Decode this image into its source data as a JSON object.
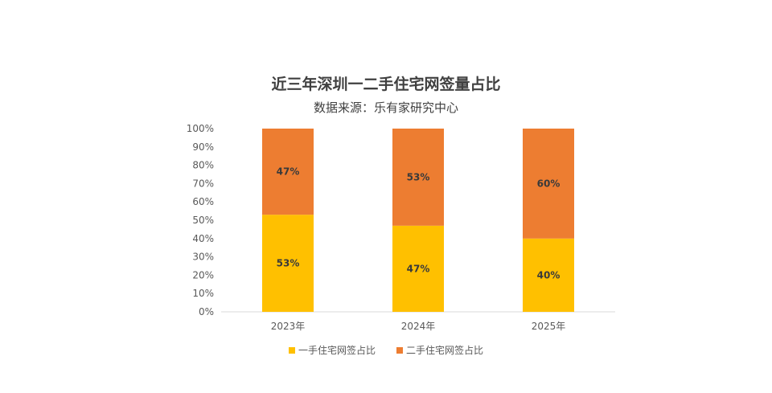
{
  "title": "近三年深圳一二手住宅网签量占比",
  "subtitle": "数据来源：乐有家研究中心",
  "colors": {
    "first_hand": "#FFC000",
    "second_hand": "#ED7D31"
  },
  "chart_data": {
    "type": "bar",
    "stacked": true,
    "title": "近三年深圳一二手住宅网签量占比",
    "subtitle": "数据来源：乐有家研究中心",
    "categories": [
      "2023年",
      "2024年",
      "2025年"
    ],
    "series": [
      {
        "name": "一手住宅网签占比",
        "values": [
          53,
          47,
          40
        ],
        "labels": [
          "53%",
          "47%",
          "40%"
        ]
      },
      {
        "name": "二手住宅网签占比",
        "values": [
          47,
          53,
          60
        ],
        "labels": [
          "47%",
          "53%",
          "60%"
        ]
      }
    ],
    "yticks": [
      "0%",
      "10%",
      "20%",
      "30%",
      "40%",
      "50%",
      "60%",
      "70%",
      "80%",
      "90%",
      "100%"
    ],
    "ylim": [
      0,
      100
    ],
    "grid": false,
    "legend": "bottom"
  }
}
